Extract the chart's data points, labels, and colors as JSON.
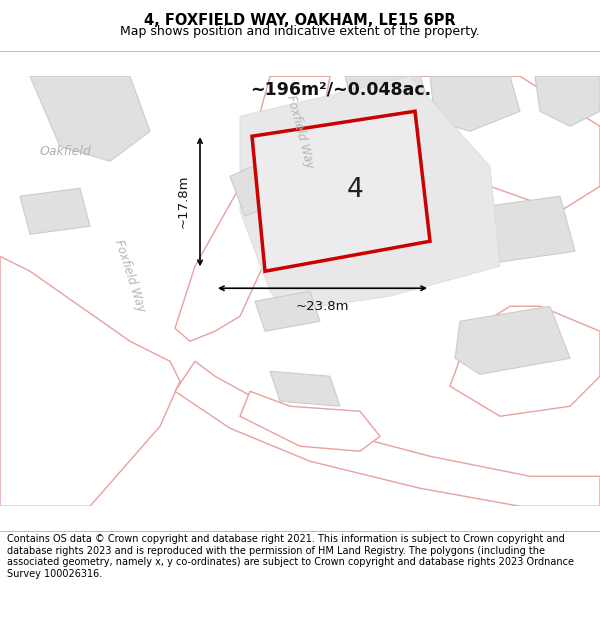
{
  "title": "4, FOXFIELD WAY, OAKHAM, LE15 6PR",
  "subtitle": "Map shows position and indicative extent of the property.",
  "footer": "Contains OS data © Crown copyright and database right 2021. This information is subject to Crown copyright and database rights 2023 and is reproduced with the permission of HM Land Registry. The polygons (including the associated geometry, namely x, y co-ordinates) are subject to Crown copyright and database rights 2023 Ordnance Survey 100026316.",
  "map_bg": "#f2f2f2",
  "road_fill": "#ffffff",
  "road_outline": "#e8a0a0",
  "building_fill": "#e0e0e0",
  "building_outline": "#cccccc",
  "plot_outline": "#cc0000",
  "plot_fill": "#ececec",
  "dim_color": "#111111",
  "area_text": "~196m²/~0.048ac.",
  "width_label": "~23.8m",
  "height_label": "~17.8m",
  "plot_number": "4",
  "road_label_top": "Foxfield Way",
  "road_label_left": "Foxfield Way",
  "street_label": "Oakfield",
  "title_fontsize": 10.5,
  "subtitle_fontsize": 9,
  "footer_fontsize": 7.0
}
